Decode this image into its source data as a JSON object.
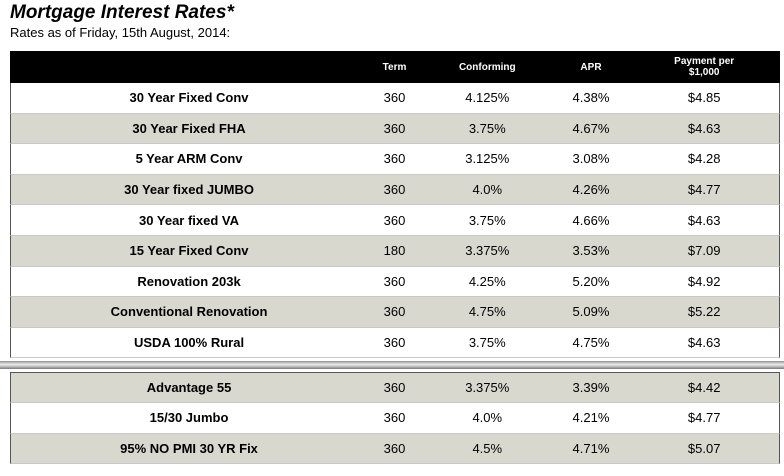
{
  "page": {
    "title": "Mortgage Interest Rates*",
    "subtitle": "Rates as of Friday, 15th August, 2014:"
  },
  "table": {
    "headers": {
      "term": "Term",
      "conforming": "Conforming",
      "apr": "APR",
      "payment_line1": "Payment per",
      "payment_line2": "$1,000"
    },
    "rows": [
      {
        "name": "30 Year Fixed Conv",
        "term": "360",
        "conforming": "4.125%",
        "apr": "4.38%",
        "payment": "$4.85"
      },
      {
        "name": "30 Year Fixed FHA",
        "term": "360",
        "conforming": "3.75%",
        "apr": "4.67%",
        "payment": "$4.63"
      },
      {
        "name": "5 Year ARM Conv",
        "term": "360",
        "conforming": "3.125%",
        "apr": "3.08%",
        "payment": "$4.28"
      },
      {
        "name": "30 Year fixed JUMBO",
        "term": "360",
        "conforming": "4.0%",
        "apr": "4.26%",
        "payment": "$4.77"
      },
      {
        "name": "30 Year fixed VA",
        "term": "360",
        "conforming": "3.75%",
        "apr": "4.66%",
        "payment": "$4.63"
      },
      {
        "name": "15 Year Fixed Conv",
        "term": "180",
        "conforming": "3.375%",
        "apr": "3.53%",
        "payment": "$7.09"
      },
      {
        "name": "Renovation 203k",
        "term": "360",
        "conforming": "4.25%",
        "apr": "5.20%",
        "payment": "$4.92"
      },
      {
        "name": "Conventional Renovation",
        "term": "360",
        "conforming": "4.75%",
        "apr": "5.09%",
        "payment": "$5.22"
      },
      {
        "name": "USDA 100% Rural",
        "term": "360",
        "conforming": "3.75%",
        "apr": "4.75%",
        "payment": "$4.63"
      }
    ],
    "rows2": [
      {
        "name": "Advantage 55",
        "term": "360",
        "conforming": "3.375%",
        "apr": "3.39%",
        "payment": "$4.42"
      },
      {
        "name": "15/30 Jumbo",
        "term": "360",
        "conforming": "4.0%",
        "apr": "4.21%",
        "payment": "$4.77"
      },
      {
        "name": "95% NO PMI 30 YR Fix",
        "term": "360",
        "conforming": "4.5%",
        "apr": "4.71%",
        "payment": "$5.07"
      }
    ]
  }
}
